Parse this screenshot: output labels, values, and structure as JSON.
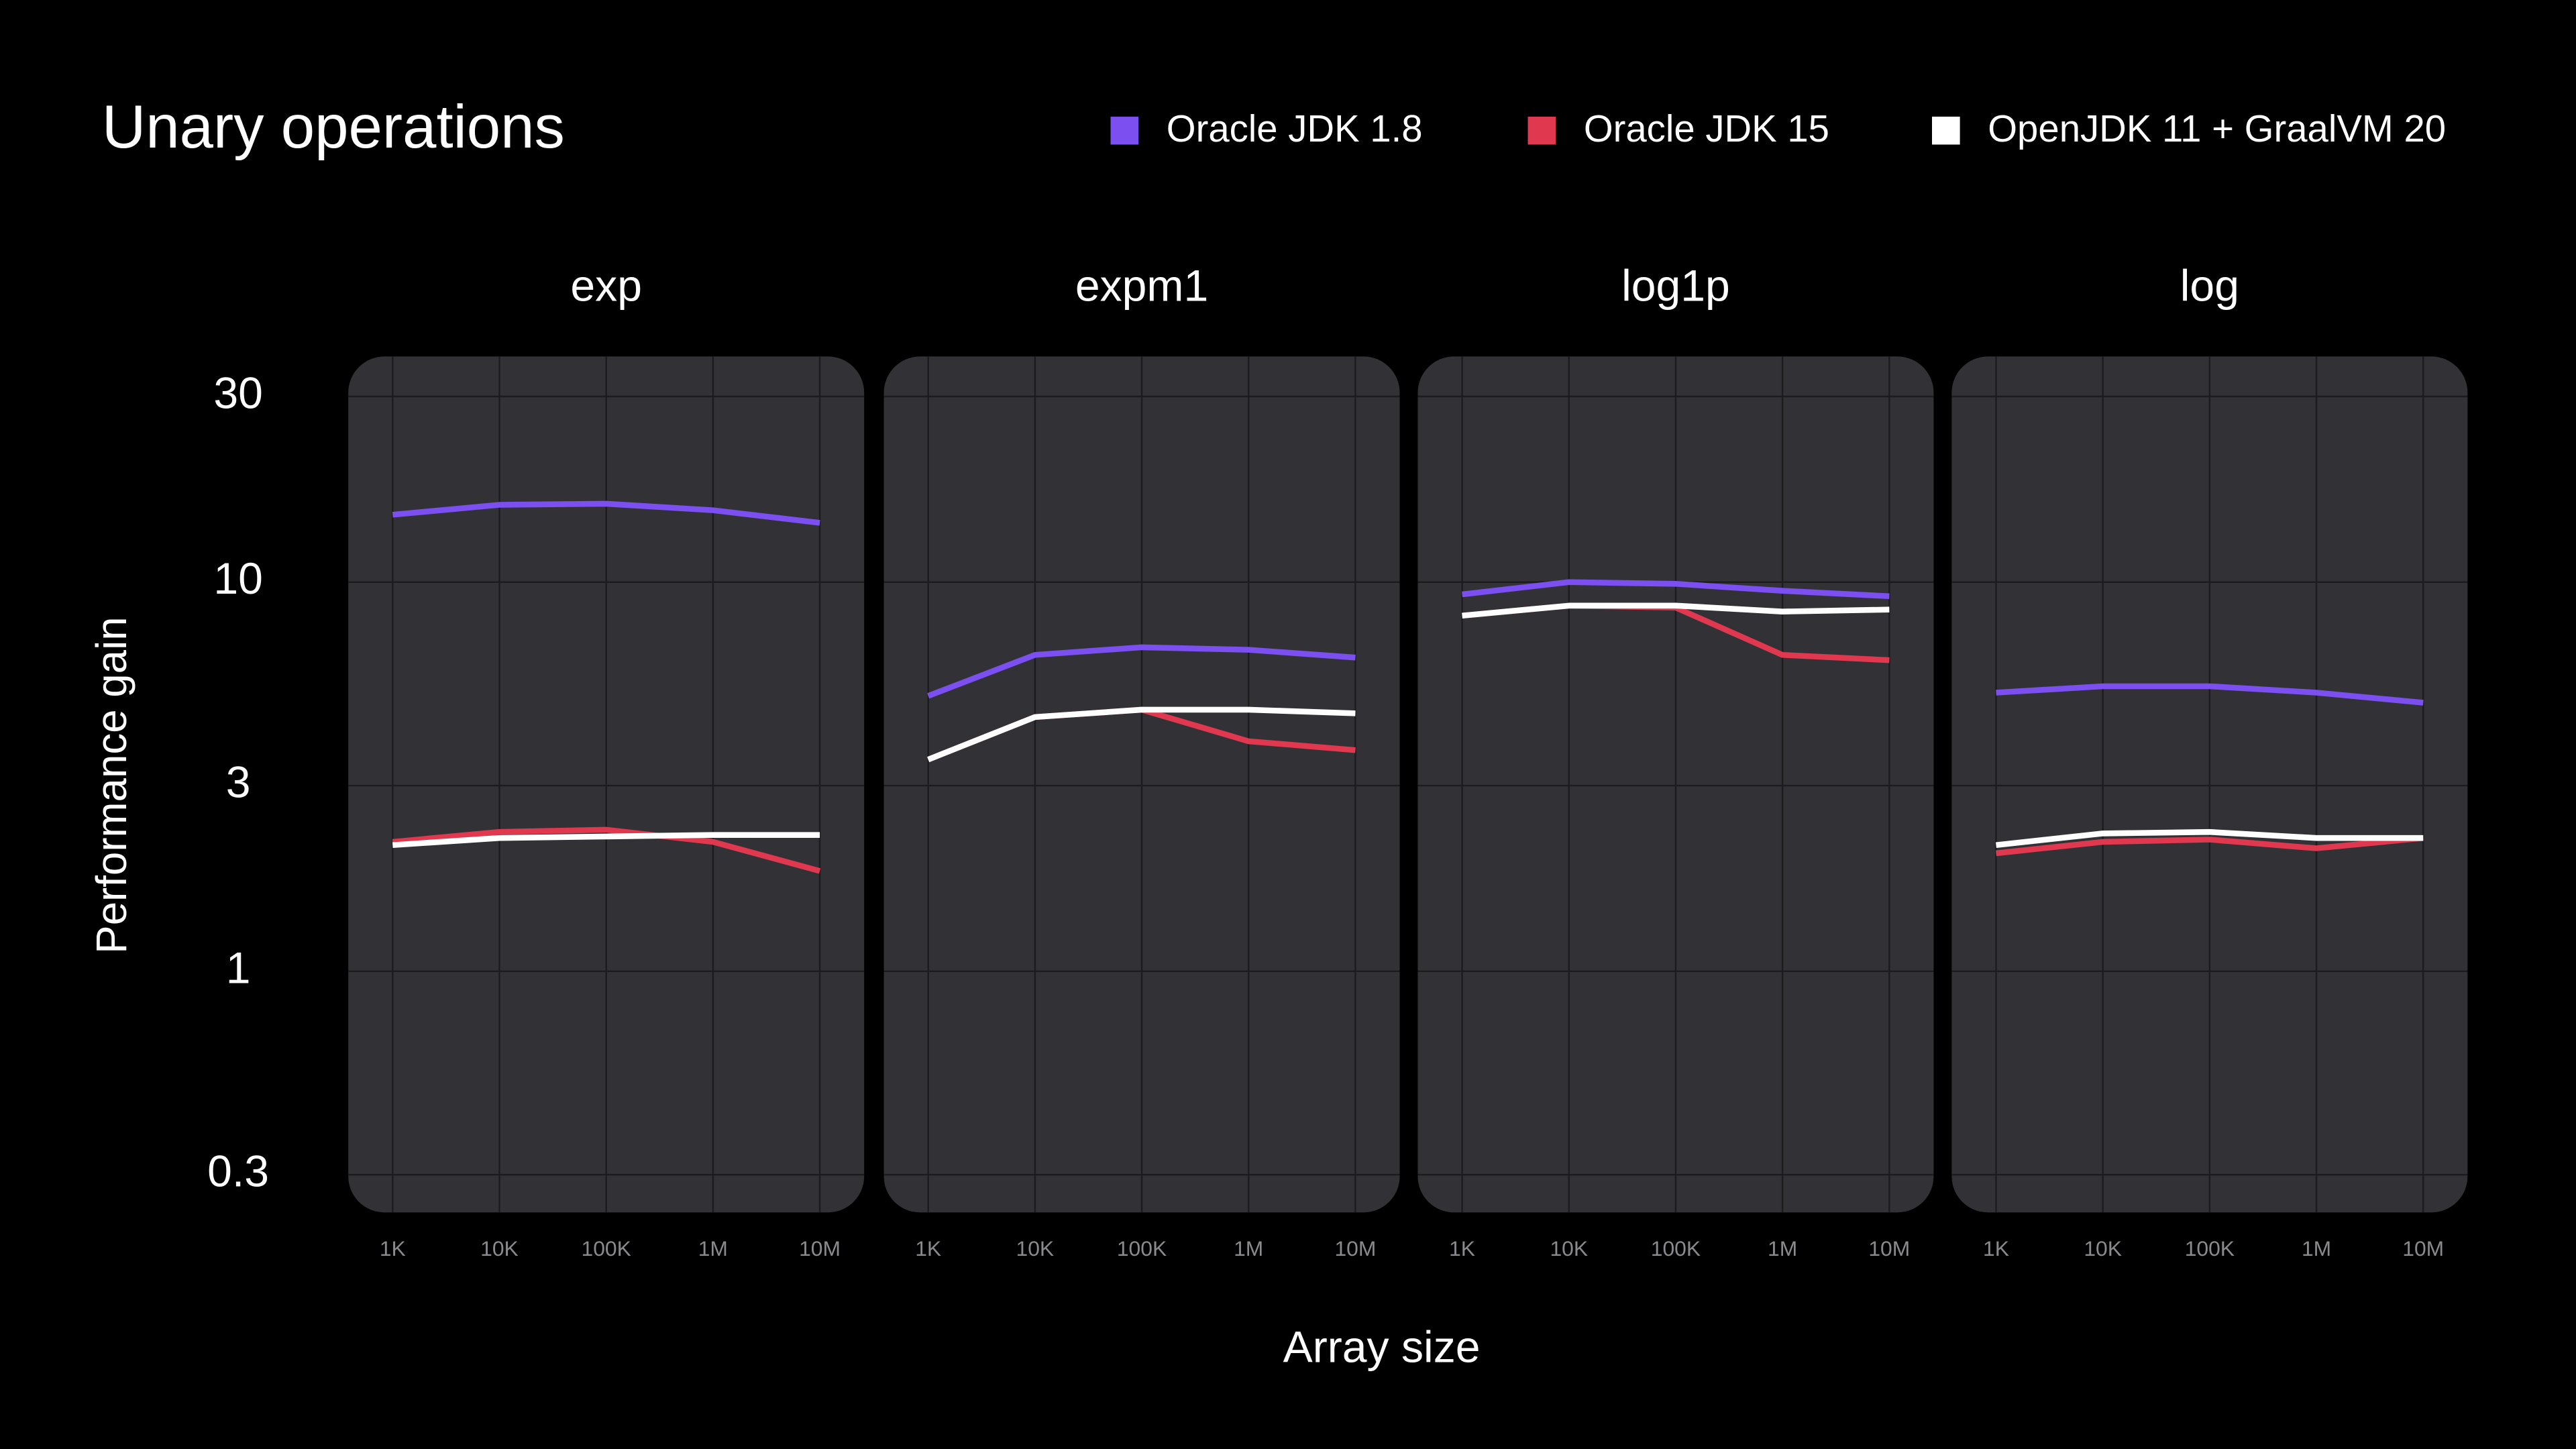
{
  "title": "Unary operations",
  "ylabel": "Performance gain",
  "xlabel": "Array size",
  "chart_data": [
    {
      "type": "line",
      "title": "exp",
      "categories": [
        "1K",
        "10K",
        "100K",
        "1M",
        "10M"
      ],
      "yscale": "log",
      "ylim": [
        0.24,
        38
      ],
      "yticks": [
        0.3,
        1,
        3,
        10,
        30
      ],
      "grid": true,
      "series": [
        {
          "name": "Oracle JDK 1.8",
          "color": "#7b4ff0",
          "values": [
            14.9,
            15.8,
            15.9,
            15.3,
            14.2
          ]
        },
        {
          "name": "Oracle JDK 15",
          "color": "#e0384f",
          "values": [
            2.15,
            2.28,
            2.31,
            2.15,
            1.81
          ]
        },
        {
          "name": "OpenJDK 11 + GraalVM 20",
          "color": "#ffffff",
          "values": [
            2.11,
            2.2,
            2.22,
            2.24,
            2.24
          ]
        }
      ]
    },
    {
      "type": "line",
      "title": "expm1",
      "categories": [
        "1K",
        "10K",
        "100K",
        "1M",
        "10M"
      ],
      "yscale": "log",
      "ylim": [
        0.24,
        38
      ],
      "yticks": [
        0.3,
        1,
        3,
        10,
        30
      ],
      "grid": true,
      "series": [
        {
          "name": "Oracle JDK 1.8",
          "color": "#7b4ff0",
          "values": [
            5.1,
            6.5,
            6.8,
            6.7,
            6.4
          ]
        },
        {
          "name": "Oracle JDK 15",
          "color": "#e0384f",
          "values": [
            3.5,
            4.5,
            4.7,
            3.9,
            3.7
          ]
        },
        {
          "name": "OpenJDK 11 + GraalVM 20",
          "color": "#ffffff",
          "values": [
            3.5,
            4.5,
            4.7,
            4.7,
            4.6
          ]
        }
      ]
    },
    {
      "type": "line",
      "title": "log1p",
      "categories": [
        "1K",
        "10K",
        "100K",
        "1M",
        "10M"
      ],
      "yscale": "log",
      "ylim": [
        0.24,
        38
      ],
      "yticks": [
        0.3,
        1,
        3,
        10,
        30
      ],
      "grid": true,
      "series": [
        {
          "name": "Oracle JDK 1.8",
          "color": "#7b4ff0",
          "values": [
            9.3,
            10,
            9.9,
            9.5,
            9.2
          ]
        },
        {
          "name": "Oracle JDK 15",
          "color": "#e0384f",
          "values": [
            8.2,
            8.7,
            8.6,
            6.5,
            6.3
          ]
        },
        {
          "name": "OpenJDK 11 + GraalVM 20",
          "color": "#ffffff",
          "values": [
            8.2,
            8.7,
            8.7,
            8.4,
            8.5
          ]
        }
      ]
    },
    {
      "type": "line",
      "title": "log",
      "categories": [
        "1K",
        "10K",
        "100K",
        "1M",
        "10M"
      ],
      "yscale": "log",
      "ylim": [
        0.24,
        38
      ],
      "yticks": [
        0.3,
        1,
        3,
        10,
        30
      ],
      "grid": true,
      "series": [
        {
          "name": "Oracle JDK 1.8",
          "color": "#7b4ff0",
          "values": [
            5.2,
            5.4,
            5.4,
            5.2,
            4.9
          ]
        },
        {
          "name": "Oracle JDK 15",
          "color": "#e0384f",
          "values": [
            2.01,
            2.15,
            2.18,
            2.07,
            2.2
          ]
        },
        {
          "name": "OpenJDK 11 + GraalVM 20",
          "color": "#ffffff",
          "values": [
            2.11,
            2.26,
            2.28,
            2.2,
            2.2
          ]
        }
      ]
    }
  ]
}
